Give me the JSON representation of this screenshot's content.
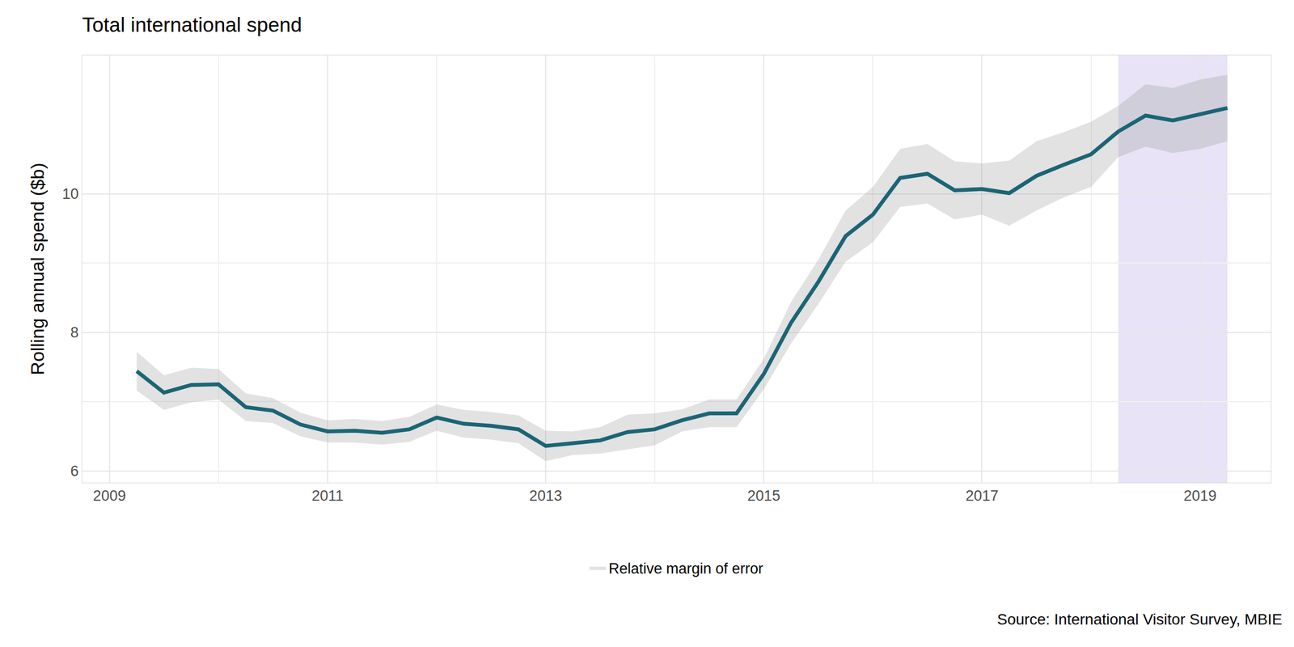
{
  "chart_data": {
    "type": "line",
    "title": "Total international spend",
    "y_label": "Rolling annual spend ($b)",
    "source": "Source: International Visitor Survey, MBIE",
    "error_label": "Relative margin of error",
    "color": "#1b6575",
    "grid": true,
    "legend": "bottom",
    "x": [
      2009.25,
      2009.5,
      2009.75,
      2010.0,
      2010.25,
      2010.5,
      2010.75,
      2011.0,
      2011.25,
      2011.5,
      2011.75,
      2012.0,
      2012.25,
      2012.5,
      2012.75,
      2013.0,
      2013.25,
      2013.5,
      2013.75,
      2014.0,
      2014.25,
      2014.5,
      2014.75,
      2015.0,
      2015.25,
      2015.5,
      2015.75,
      2016.0,
      2016.25,
      2016.5,
      2016.75,
      2017.0,
      2017.25,
      2017.5,
      2017.75,
      2018.0,
      2018.25,
      2018.5,
      2018.75,
      2019.0,
      2019.25
    ],
    "values": [
      7.44,
      7.13,
      7.24,
      7.25,
      6.92,
      6.87,
      6.67,
      6.57,
      6.58,
      6.55,
      6.6,
      6.77,
      6.68,
      6.65,
      6.6,
      6.36,
      6.4,
      6.44,
      6.56,
      6.6,
      6.73,
      6.83,
      6.83,
      7.4,
      8.14,
      8.73,
      9.39,
      9.7,
      10.23,
      10.29,
      10.05,
      10.07,
      10.01,
      10.26,
      10.42,
      10.57,
      10.9,
      11.13,
      11.06,
      11.15,
      11.24
    ],
    "margin_of_error": [
      0.28,
      0.25,
      0.25,
      0.22,
      0.2,
      0.18,
      0.17,
      0.16,
      0.17,
      0.17,
      0.18,
      0.19,
      0.2,
      0.2,
      0.2,
      0.22,
      0.17,
      0.19,
      0.25,
      0.23,
      0.16,
      0.2,
      0.2,
      0.22,
      0.3,
      0.32,
      0.37,
      0.4,
      0.42,
      0.43,
      0.42,
      0.37,
      0.47,
      0.5,
      0.47,
      0.47,
      0.37,
      0.45,
      0.47,
      0.5,
      0.48
    ],
    "highlight": [
      2018.25,
      2019.25
    ],
    "xlim": [
      2008.75,
      2019.65
    ],
    "ylim": [
      5.83,
      12.0
    ],
    "xticks": [
      2009,
      2011,
      2013,
      2015,
      2017,
      2019
    ],
    "yticks": [
      6,
      8,
      10
    ]
  }
}
